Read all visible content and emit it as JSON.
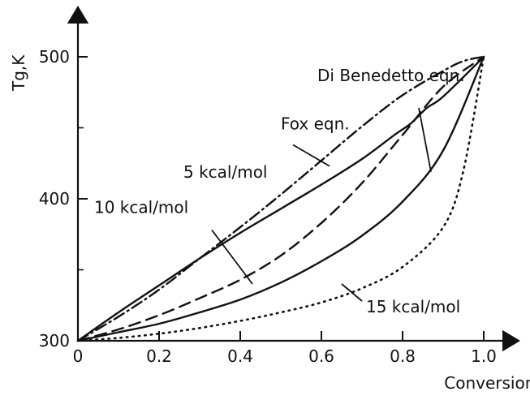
{
  "chart_data": {
    "type": "line",
    "xlabel": "Conversion,%",
    "ylabel": "Tg,K",
    "xlim": [
      0,
      1.0
    ],
    "ylim": [
      300,
      500
    ],
    "x_ticks": [
      0,
      0.2,
      0.4,
      0.6,
      0.8,
      1.0
    ],
    "x_tick_labels": [
      "0",
      "0.2",
      "0.4",
      "0.6",
      "0.8",
      "1.0"
    ],
    "y_ticks": [
      300,
      400,
      500
    ],
    "y_tick_labels": [
      "300",
      "400",
      "500"
    ],
    "grid": false,
    "series": [
      {
        "name": "Di Benedetto eqn.",
        "style": "dashdot",
        "x": [
          0,
          0.1,
          0.2,
          0.3,
          0.4,
          0.5,
          0.6,
          0.7,
          0.8,
          0.9,
          0.95,
          1.0
        ],
        "y": [
          300,
          317,
          336,
          358,
          380,
          403,
          427,
          451,
          473,
          490,
          497,
          500
        ]
      },
      {
        "name": "5 kcal/mol",
        "style": "solid",
        "x": [
          0,
          0.1,
          0.2,
          0.3,
          0.4,
          0.5,
          0.6,
          0.7,
          0.78,
          0.82,
          0.86,
          0.9,
          1.0
        ],
        "y": [
          300,
          320,
          339,
          358,
          376,
          393,
          410,
          428,
          445,
          453,
          464,
          472,
          500
        ]
      },
      {
        "name": "",
        "style": "dashed",
        "x": [
          0,
          0.1,
          0.2,
          0.3,
          0.4,
          0.5,
          0.6,
          0.7,
          0.8,
          0.9,
          1.0
        ],
        "y": [
          300,
          308,
          318,
          330,
          343,
          360,
          383,
          411,
          445,
          479,
          500
        ]
      },
      {
        "name": "10 kcal/mol",
        "style": "solid",
        "x": [
          0,
          0.1,
          0.2,
          0.3,
          0.4,
          0.5,
          0.6,
          0.7,
          0.8,
          0.9,
          1.0
        ],
        "y": [
          300,
          306,
          312,
          320,
          329,
          341,
          356,
          374,
          398,
          434,
          500
        ]
      },
      {
        "name": "15 kcal/mol",
        "style": "dotted",
        "x": [
          0,
          0.1,
          0.2,
          0.3,
          0.4,
          0.5,
          0.6,
          0.7,
          0.8,
          0.9,
          0.95,
          1.0
        ],
        "y": [
          300,
          302,
          305,
          309,
          314,
          320,
          327,
          337,
          352,
          380,
          420,
          500
        ]
      }
    ],
    "annotations": [
      {
        "text": "Di Benedetto eqn.",
        "x": 0.59,
        "y": 483,
        "leader": [
          [
            0.84,
            464
          ],
          [
            0.87,
            419
          ]
        ]
      },
      {
        "text": "Fox eqn.",
        "x": 0.5,
        "y": 449,
        "leader": [
          [
            0.53,
            438
          ],
          [
            0.62,
            423
          ]
        ]
      },
      {
        "text": "5 kcal/mol",
        "x": 0.26,
        "y": 415
      },
      {
        "text": "10 kcal/mol",
        "x": 0.04,
        "y": 390,
        "leader": [
          [
            0.33,
            378
          ],
          [
            0.43,
            340
          ]
        ]
      },
      {
        "text": "15 kcal/mol",
        "x": 0.71,
        "y": 320,
        "leader": [
          [
            0.7,
            328
          ],
          [
            0.65,
            340
          ]
        ]
      }
    ]
  }
}
